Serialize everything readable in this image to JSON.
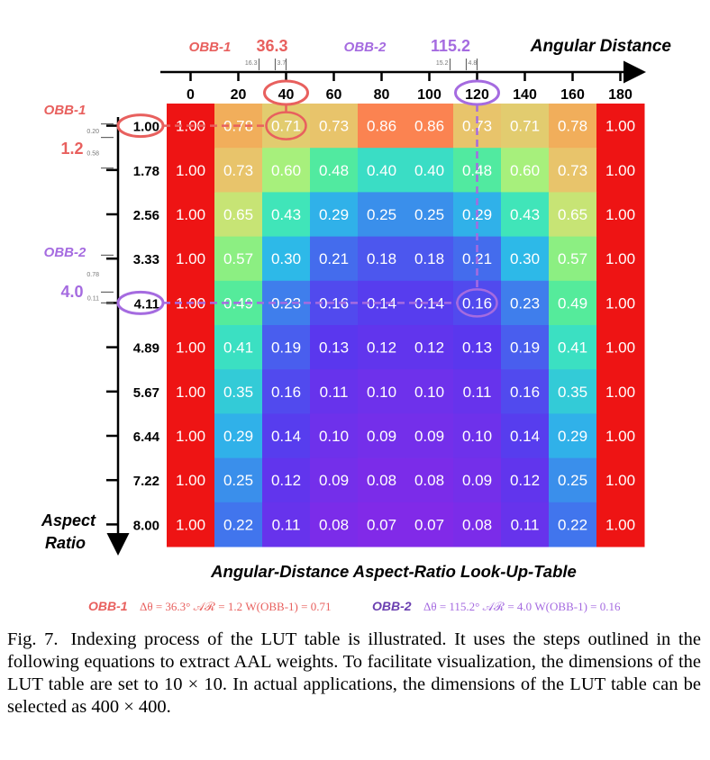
{
  "chart_data": {
    "type": "heatmap",
    "title": "Angular-Distance Aspect-Ratio Look-Up-Table",
    "xlabel": "Angular Distance",
    "ylabel": "Aspect Ratio",
    "x": [
      "0",
      "20",
      "40",
      "60",
      "80",
      "100",
      "120",
      "140",
      "160",
      "180"
    ],
    "y": [
      "1.00",
      "1.78",
      "2.56",
      "3.33",
      "4.11",
      "4.89",
      "5.67",
      "6.44",
      "7.22",
      "8.00"
    ],
    "values": [
      [
        1.0,
        0.78,
        0.71,
        0.73,
        0.86,
        0.86,
        0.73,
        0.71,
        0.78,
        1.0
      ],
      [
        1.0,
        0.73,
        0.6,
        0.48,
        0.4,
        0.4,
        0.48,
        0.6,
        0.73,
        1.0
      ],
      [
        1.0,
        0.65,
        0.43,
        0.29,
        0.25,
        0.25,
        0.29,
        0.43,
        0.65,
        1.0
      ],
      [
        1.0,
        0.57,
        0.3,
        0.21,
        0.18,
        0.18,
        0.21,
        0.3,
        0.57,
        1.0
      ],
      [
        1.0,
        0.49,
        0.23,
        0.16,
        0.14,
        0.14,
        0.16,
        0.23,
        0.49,
        1.0
      ],
      [
        1.0,
        0.41,
        0.19,
        0.13,
        0.12,
        0.12,
        0.13,
        0.19,
        0.41,
        1.0
      ],
      [
        1.0,
        0.35,
        0.16,
        0.11,
        0.1,
        0.1,
        0.11,
        0.16,
        0.35,
        1.0
      ],
      [
        1.0,
        0.29,
        0.14,
        0.1,
        0.09,
        0.09,
        0.1,
        0.14,
        0.29,
        1.0
      ],
      [
        1.0,
        0.25,
        0.12,
        0.09,
        0.08,
        0.08,
        0.09,
        0.12,
        0.25,
        1.0
      ],
      [
        1.0,
        0.22,
        0.11,
        0.08,
        0.07,
        0.07,
        0.08,
        0.11,
        0.22,
        1.0
      ]
    ],
    "annotations": {
      "obb1": {
        "label": "OBB-1",
        "angle": "36.3",
        "angle_part_a": "16.3",
        "angle_part_b": "3.7",
        "aspect": "1.2",
        "aspect_part_a": "0.20",
        "aspect_part_b": "0.58",
        "x_index": 2,
        "y_index": 0,
        "color": "#e8605e"
      },
      "obb2": {
        "label": "OBB-2",
        "angle": "115.2",
        "angle_part_a": "15.2",
        "angle_part_b": "4.8",
        "aspect": "4.0",
        "aspect_part_a": "0.78",
        "aspect_part_b": "0.11",
        "x_index": 6,
        "y_index": 4,
        "color": "#a56be0"
      }
    },
    "formula": {
      "obb1_label": "OBB-1",
      "obb1_text": "Δθ = 36.3° 𝒜ℛ = 1.2 W(OBB-1) = 0.71",
      "obb2_label": "OBB-2",
      "obb2_text": "Δθ = 115.2° 𝒜ℛ = 4.0 W(OBB-1) = 0.16"
    },
    "colormap": "rainbow"
  },
  "caption": {
    "number": "Fig. 7.",
    "text": "Indexing process of the LUT table is illustrated. It uses the steps outlined in the following equations to extract AAL weights. To facilitate visualization, the dimensions of the LUT table are set to 10 × 10. In actual applications, the dimensions of the LUT table can be selected as 400 × 400."
  }
}
